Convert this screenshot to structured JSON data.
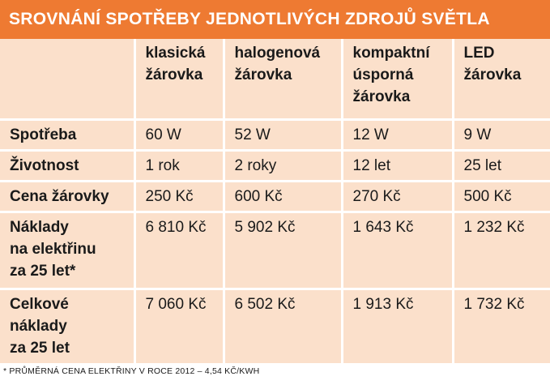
{
  "title": "SROVNÁNÍ SPOTŘEBY JEDNOTLIVÝCH ZDROJŮ SVĚTLA",
  "colors": {
    "header_bg": "#ee7a32",
    "table_bg": "#fbe0cb",
    "grid": "#ffffff"
  },
  "columns": [
    "",
    "klasická\nžárovka",
    "halogenová\nžárovka",
    "kompaktní\núsporná\nžárovka",
    "LED\nžárovka"
  ],
  "rows": [
    {
      "label": "Spotřeba",
      "values": [
        "60 W",
        "52 W",
        "12 W",
        "9 W"
      ]
    },
    {
      "label": "Životnost",
      "values": [
        "1 rok",
        "2 roky",
        "12 let",
        "25 let"
      ]
    },
    {
      "label": "Cena žárovky",
      "values": [
        "250 Kč",
        "600 Kč",
        "270 Kč",
        "500 Kč"
      ]
    },
    {
      "label": "Náklady\nna elektřinu\nza 25 let*",
      "values": [
        "6 810 Kč",
        "5 902 Kč",
        "1 643 Kč",
        "1 232 Kč"
      ]
    },
    {
      "label": "Celkové\nnáklady\nza 25 let",
      "values": [
        "7 060 Kč",
        "6 502 Kč",
        "1 913 Kč",
        "1 732 Kč"
      ]
    }
  ],
  "footnote": "* PRŮMĚRNÁ CENA ELEKTŘINY V ROCE 2012 – 4,54 KČ/KWH"
}
